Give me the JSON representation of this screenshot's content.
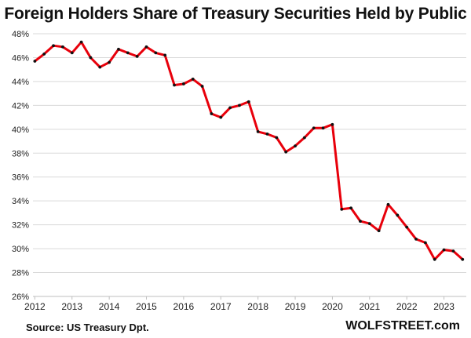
{
  "chart_data": {
    "type": "line",
    "title": "Foreign Holders Share of Treasury Securities Held by Public",
    "xlabel": "",
    "ylabel": "",
    "ylim": [
      26,
      48
    ],
    "yticks": [
      "26%",
      "28%",
      "30%",
      "32%",
      "34%",
      "36%",
      "38%",
      "40%",
      "42%",
      "44%",
      "46%",
      "48%"
    ],
    "xlim": [
      2011.95,
      2023.6
    ],
    "xticks": [
      "2012",
      "2013",
      "2014",
      "2015",
      "2016",
      "2017",
      "2018",
      "2019",
      "2020",
      "2021",
      "2022",
      "2023"
    ],
    "grid": true,
    "series": [
      {
        "color": "#e8000b",
        "x": [
          2012.0,
          2012.25,
          2012.5,
          2012.75,
          2013.0,
          2013.25,
          2013.5,
          2013.75,
          2014.0,
          2014.25,
          2014.5,
          2014.75,
          2015.0,
          2015.25,
          2015.5,
          2015.75,
          2016.0,
          2016.25,
          2016.5,
          2016.75,
          2017.0,
          2017.25,
          2017.5,
          2017.75,
          2018.0,
          2018.25,
          2018.5,
          2018.75,
          2019.0,
          2019.25,
          2019.5,
          2019.75,
          2020.0,
          2020.25,
          2020.5,
          2020.75,
          2021.0,
          2021.25,
          2021.5,
          2021.75,
          2022.0,
          2022.25,
          2022.5,
          2022.75,
          2023.0,
          2023.25,
          2023.5
        ],
        "y": [
          45.7,
          46.3,
          47.0,
          46.9,
          46.4,
          47.3,
          46.0,
          45.2,
          45.6,
          46.7,
          46.4,
          46.1,
          46.9,
          46.4,
          46.2,
          43.7,
          43.8,
          44.2,
          43.6,
          41.3,
          41.0,
          41.8,
          42.0,
          42.3,
          39.8,
          39.6,
          39.3,
          38.1,
          38.6,
          39.3,
          40.1,
          40.1,
          40.4,
          33.3,
          33.4,
          32.3,
          32.1,
          31.5,
          33.7,
          32.8,
          31.8,
          30.8,
          30.5,
          29.1,
          29.9,
          29.8,
          29.1
        ]
      }
    ]
  },
  "footer": {
    "source": "Source: US Treasury  Dpt.",
    "brand": "WOLFSTREET.com"
  }
}
